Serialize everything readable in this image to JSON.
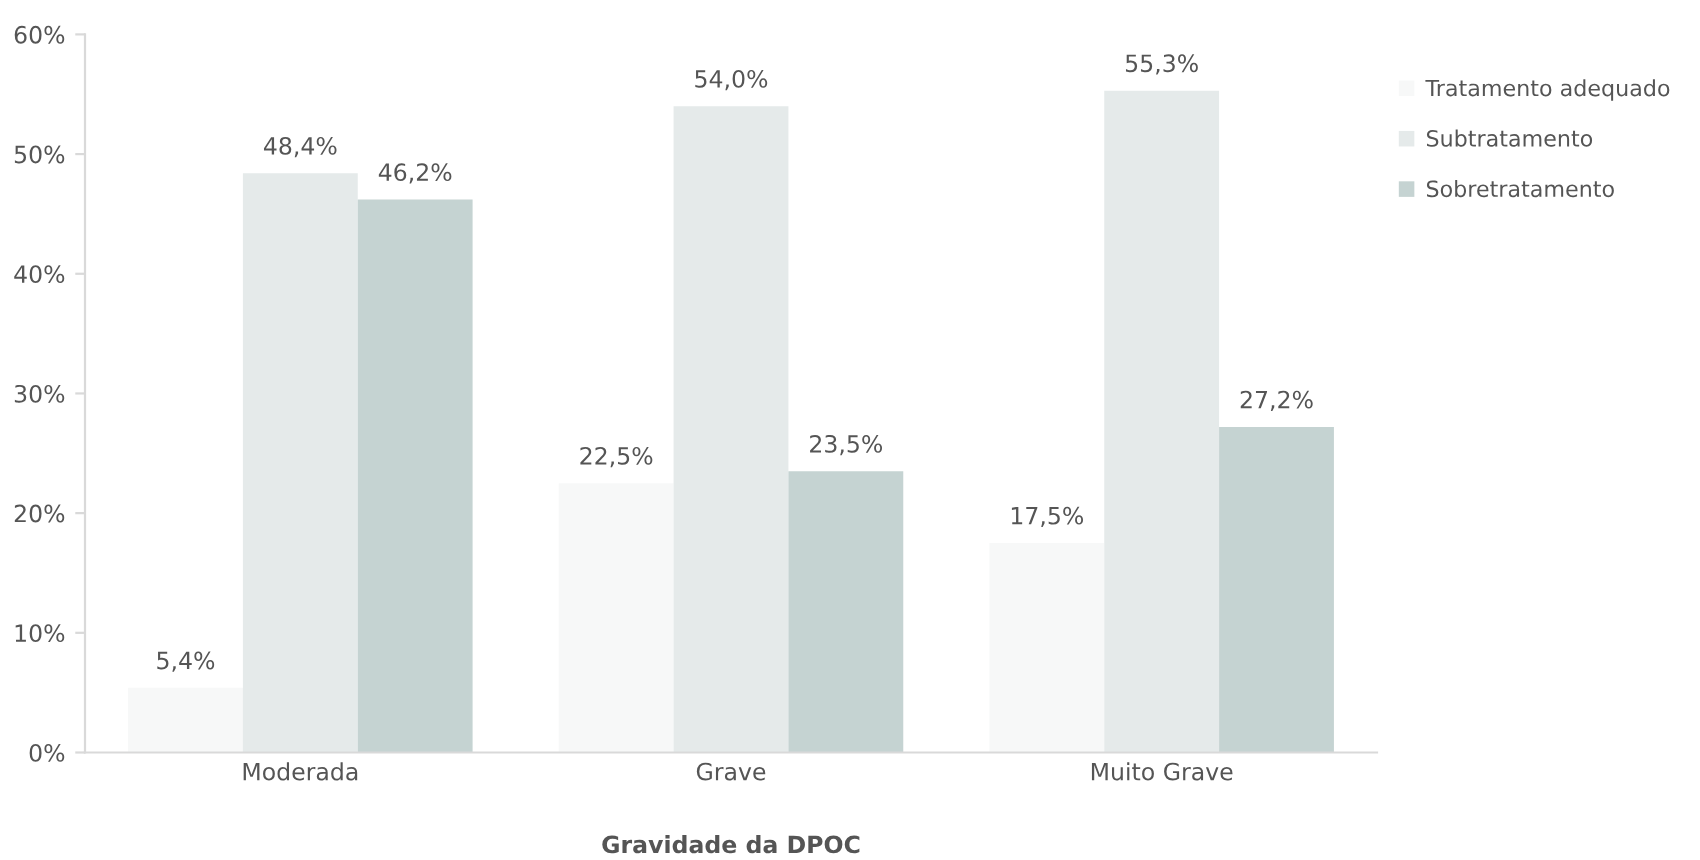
{
  "chart_data": {
    "type": "bar",
    "xlabel": "Gravidade da DPOC",
    "categories": [
      "Moderada",
      "Grave",
      "Muito Grave"
    ],
    "series": [
      {
        "name": "Tratamento adequado",
        "color": "#f7f8f8",
        "values": [
          5.4,
          22.5,
          17.5
        ],
        "value_labels": [
          "5,4%",
          "22,5%",
          "17,5%"
        ]
      },
      {
        "name": "Subtratamento",
        "color": "#e5eaea",
        "values": [
          48.4,
          54.0,
          55.3
        ],
        "value_labels": [
          "48,4%",
          "54,0%",
          "55,3%"
        ]
      },
      {
        "name": "Sobretratamento",
        "color": "#c5d3d2",
        "values": [
          46.2,
          23.5,
          27.2
        ],
        "value_labels": [
          "46,2%",
          "23,5%",
          "27,2%"
        ]
      }
    ],
    "ylim": [
      0,
      60
    ],
    "yticks": [
      {
        "value": 0,
        "label": "0%"
      },
      {
        "value": 10,
        "label": "10%"
      },
      {
        "value": 20,
        "label": "20%"
      },
      {
        "value": 30,
        "label": "30%"
      },
      {
        "value": 40,
        "label": "40%"
      },
      {
        "value": 50,
        "label": "50%"
      },
      {
        "value": 60,
        "label": "60%"
      }
    ],
    "grid": false,
    "legend": "right"
  }
}
